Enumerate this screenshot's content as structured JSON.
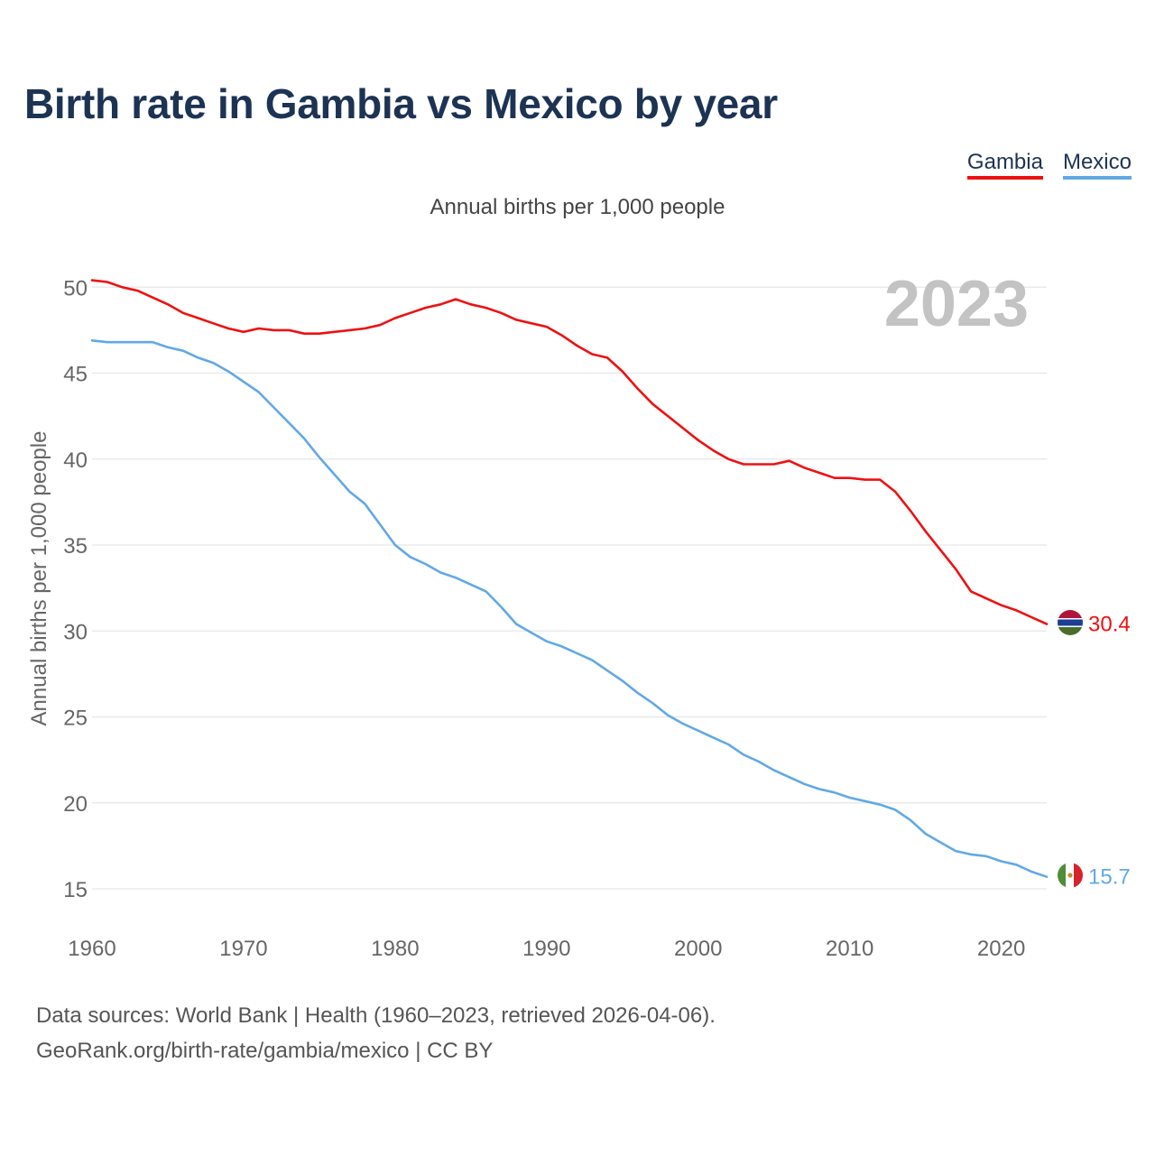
{
  "title": "Birth rate in Gambia vs Mexico by year",
  "subtitle": "Annual births per 1,000 people",
  "legend": [
    {
      "name": "Gambia",
      "color": "#ee1111"
    },
    {
      "name": "Mexico",
      "color": "#62a8e5"
    }
  ],
  "year_label": "2023",
  "sources": {
    "line1": "Data sources: World Bank | Health (1960–2023, retrieved 2026-04-06).",
    "line2": "GeoRank.org/birth-rate/gambia/mexico | CC BY"
  },
  "chart_data": {
    "type": "line",
    "title": "Birth rate in Gambia vs Mexico by year",
    "xlabel": "",
    "ylabel": "Annual births per 1,000 people",
    "xlim": [
      1960,
      2023
    ],
    "ylim": [
      13.5,
      51
    ],
    "yticks": [
      15,
      20,
      25,
      30,
      35,
      40,
      45,
      50
    ],
    "xticks": [
      1960,
      1970,
      1980,
      1990,
      2000,
      2010,
      2020
    ],
    "grid": true,
    "legend_position": "top-right",
    "x": [
      1960,
      1961,
      1962,
      1963,
      1964,
      1965,
      1966,
      1967,
      1968,
      1969,
      1970,
      1971,
      1972,
      1973,
      1974,
      1975,
      1976,
      1977,
      1978,
      1979,
      1980,
      1981,
      1982,
      1983,
      1984,
      1985,
      1986,
      1987,
      1988,
      1989,
      1990,
      1991,
      1992,
      1993,
      1994,
      1995,
      1996,
      1997,
      1998,
      1999,
      2000,
      2001,
      2002,
      2003,
      2004,
      2005,
      2006,
      2007,
      2008,
      2009,
      2010,
      2011,
      2012,
      2013,
      2014,
      2015,
      2016,
      2017,
      2018,
      2019,
      2020,
      2021,
      2022,
      2023
    ],
    "series": [
      {
        "name": "Gambia",
        "color": "#ee1111",
        "end_label": "30.4",
        "values": [
          50.4,
          50.3,
          50.0,
          49.8,
          49.4,
          49.0,
          48.5,
          48.2,
          47.9,
          47.6,
          47.4,
          47.6,
          47.5,
          47.5,
          47.3,
          47.3,
          47.4,
          47.5,
          47.6,
          47.8,
          48.2,
          48.5,
          48.8,
          49.0,
          49.3,
          49.0,
          48.8,
          48.5,
          48.1,
          47.9,
          47.7,
          47.2,
          46.6,
          46.1,
          45.9,
          45.1,
          44.1,
          43.2,
          42.5,
          41.8,
          41.1,
          40.5,
          40.0,
          39.7,
          39.7,
          39.7,
          39.9,
          39.5,
          39.2,
          38.9,
          38.9,
          38.8,
          38.8,
          38.1,
          37.0,
          35.8,
          34.7,
          33.6,
          32.3,
          31.9,
          31.5,
          31.2,
          30.8,
          30.4
        ]
      },
      {
        "name": "Mexico",
        "color": "#62a8e5",
        "end_label": "15.7",
        "values": [
          46.9,
          46.8,
          46.8,
          46.8,
          46.8,
          46.5,
          46.3,
          45.9,
          45.6,
          45.1,
          44.5,
          43.9,
          43.0,
          42.1,
          41.2,
          40.1,
          39.1,
          38.1,
          37.4,
          36.2,
          35.0,
          34.3,
          33.9,
          33.4,
          33.1,
          32.7,
          32.3,
          31.4,
          30.4,
          29.9,
          29.4,
          29.1,
          28.7,
          28.3,
          27.7,
          27.1,
          26.4,
          25.8,
          25.1,
          24.6,
          24.2,
          23.8,
          23.4,
          22.8,
          22.4,
          21.9,
          21.5,
          21.1,
          20.8,
          20.6,
          20.3,
          20.1,
          19.9,
          19.6,
          19.0,
          18.2,
          17.7,
          17.2,
          17.0,
          16.9,
          16.6,
          16.4,
          16.0,
          15.7
        ]
      }
    ]
  }
}
